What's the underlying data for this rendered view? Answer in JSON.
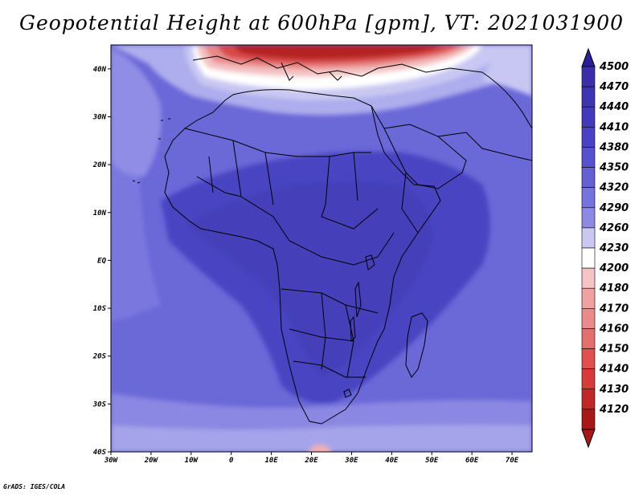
{
  "title": "Geopotential Height at 600hPa [gpm], VT: 2021031900",
  "footer": "GrADS: IGES/COLA",
  "map": {
    "lon_range": [
      -30,
      75
    ],
    "lat_range": [
      -40,
      45
    ],
    "lon_ticks": [
      "30W",
      "20W",
      "10W",
      "0",
      "10E",
      "20E",
      "30E",
      "40E",
      "50E",
      "60E",
      "70E"
    ],
    "lat_ticks": [
      "40N",
      "30N",
      "20N",
      "10N",
      "EQ",
      "10S",
      "20S",
      "30S",
      "40S"
    ],
    "lon_tick_values": [
      -30,
      -20,
      -10,
      0,
      10,
      20,
      30,
      40,
      50,
      60,
      70
    ],
    "lat_tick_values": [
      40,
      30,
      20,
      10,
      0,
      -10,
      -20,
      -30,
      -40
    ],
    "field": "Geopotential Height at 600hPa",
    "units": "gpm"
  },
  "colorbar": {
    "levels": [
      "4500",
      "4470",
      "4440",
      "4410",
      "4380",
      "4350",
      "4320",
      "4290",
      "4260",
      "4230",
      "4200",
      "4180",
      "4170",
      "4160",
      "4150",
      "4140",
      "4130",
      "4120"
    ],
    "colors": [
      "#3a2fa8",
      "#3d35b4",
      "#4438bd",
      "#4a42c6",
      "#5651cf",
      "#6461d6",
      "#7573dd",
      "#8c8ae3",
      "#c8c8f2",
      "#ffffff",
      "#f6c4c4",
      "#f0a2a2",
      "#ea8a8a",
      "#e56e6e",
      "#e05050",
      "#d63a3a",
      "#c02828",
      "#a81818"
    ],
    "top_arrow_color": "#2a1f98",
    "bottom_arrow_color": "#a81818"
  }
}
